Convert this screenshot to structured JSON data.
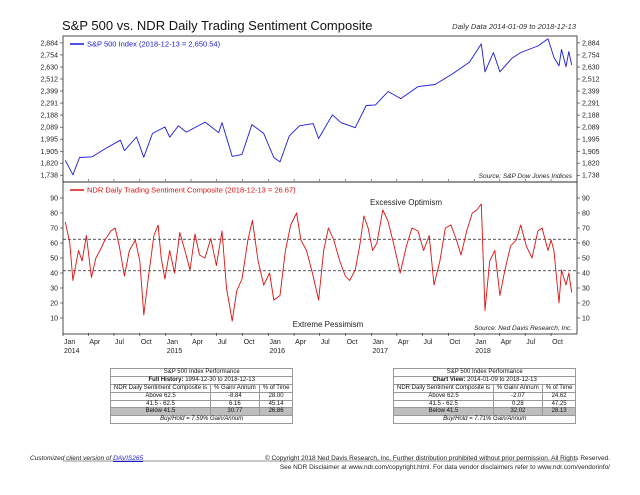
{
  "header": {
    "title": "S&P 500 vs. NDR Daily Trading Sentiment Composite",
    "date_range": "Daily Data 2014-01-09 to 2018-12-13"
  },
  "chart_data": [
    {
      "type": "line",
      "id": "spx",
      "legend": "S&P 500 Index (2018-12-13 = 2,650.54)",
      "color": "#1a1adb",
      "scale": "log",
      "ylim": [
        1700,
        2950
      ],
      "yticks": [
        "2,884",
        "2,754",
        "2,630",
        "2,512",
        "2,399",
        "2,291",
        "2,188",
        "2,089",
        "1,995",
        "1,905",
        "1,820",
        "1,738"
      ],
      "source": "Source:  S&P Dow Jones Indices",
      "series": [
        {
          "x": [
            "2014-01-09",
            "2014-02-05",
            "2014-03-01",
            "2014-04-15",
            "2014-06-01",
            "2014-07-24",
            "2014-08-07",
            "2014-09-19",
            "2014-10-15",
            "2014-11-15",
            "2014-12-29",
            "2015-01-15",
            "2015-02-15",
            "2015-03-15",
            "2015-05-21",
            "2015-07-08",
            "2015-07-20",
            "2015-08-25",
            "2015-09-29",
            "2015-11-03",
            "2015-12-15",
            "2016-01-20",
            "2016-02-11",
            "2016-03-15",
            "2016-04-20",
            "2016-06-08",
            "2016-06-27",
            "2016-08-15",
            "2016-09-15",
            "2016-11-04",
            "2016-12-13",
            "2017-01-15",
            "2017-03-01",
            "2017-04-15",
            "2017-06-15",
            "2017-08-15",
            "2017-10-15",
            "2017-12-15",
            "2018-01-26",
            "2018-02-08",
            "2018-03-10",
            "2018-04-02",
            "2018-05-15",
            "2018-06-15",
            "2018-08-15",
            "2018-09-20",
            "2018-10-11",
            "2018-10-29",
            "2018-11-07",
            "2018-11-23",
            "2018-12-03",
            "2018-12-13"
          ],
          "y": [
            1840,
            1741,
            1860,
            1865,
            1925,
            1987,
            1910,
            2012,
            1862,
            2040,
            2090,
            2010,
            2100,
            2050,
            2130,
            2045,
            2126,
            1868,
            1882,
            2110,
            2040,
            1860,
            1829,
            2020,
            2100,
            2118,
            2000,
            2190,
            2125,
            2085,
            2270,
            2275,
            2395,
            2330,
            2440,
            2460,
            2560,
            2680,
            2873,
            2581,
            2780,
            2582,
            2720,
            2780,
            2850,
            2930,
            2728,
            2641,
            2813,
            2632,
            2790,
            2650
          ]
        }
      ]
    },
    {
      "type": "line",
      "id": "ndr",
      "legend": "NDR Daily Trading Sentiment Composite (2018-12-13 = 26.67)",
      "color": "#dd1111",
      "ylim": [
        0,
        100
      ],
      "yticks": [
        "90",
        "80",
        "70",
        "60",
        "50",
        "40",
        "30",
        "20",
        "10"
      ],
      "thresholds": [
        62.5,
        41.5
      ],
      "annotation_top": "Excessive Optimism",
      "annotation_bottom": "Extreme Pessimism",
      "source": "Source:  Ned Davis Research, Inc.",
      "x_month_labels": [
        "Jan",
        "Apr",
        "Jul",
        "Oct"
      ],
      "x_year_labels": [
        "2014",
        "2015",
        "2016",
        "2017",
        "2018"
      ],
      "series": [
        {
          "x": [
            "2014-01-09",
            "2014-01-25",
            "2014-02-05",
            "2014-02-25",
            "2014-03-10",
            "2014-03-25",
            "2014-04-12",
            "2014-04-28",
            "2014-05-15",
            "2014-05-30",
            "2014-06-20",
            "2014-07-05",
            "2014-07-20",
            "2014-08-07",
            "2014-08-25",
            "2014-09-15",
            "2014-10-01",
            "2014-10-15",
            "2014-10-30",
            "2014-11-20",
            "2014-12-05",
            "2014-12-16",
            "2014-12-29",
            "2015-01-15",
            "2015-02-01",
            "2015-02-20",
            "2015-03-10",
            "2015-03-28",
            "2015-04-15",
            "2015-05-01",
            "2015-05-20",
            "2015-06-10",
            "2015-06-30",
            "2015-07-20",
            "2015-08-05",
            "2015-08-25",
            "2015-09-10",
            "2015-09-29",
            "2015-10-20",
            "2015-11-05",
            "2015-11-25",
            "2015-12-15",
            "2016-01-05",
            "2016-01-20",
            "2016-02-11",
            "2016-03-01",
            "2016-03-20",
            "2016-04-10",
            "2016-04-25",
            "2016-05-15",
            "2016-06-05",
            "2016-06-27",
            "2016-07-15",
            "2016-08-01",
            "2016-08-20",
            "2016-09-10",
            "2016-09-30",
            "2016-10-15",
            "2016-11-04",
            "2016-11-20",
            "2016-12-05",
            "2016-12-20",
            "2017-01-05",
            "2017-01-20",
            "2017-02-10",
            "2017-02-28",
            "2017-03-20",
            "2017-04-13",
            "2017-05-05",
            "2017-05-25",
            "2017-06-15",
            "2017-07-05",
            "2017-07-25",
            "2017-08-11",
            "2017-09-01",
            "2017-09-20",
            "2017-10-10",
            "2017-10-30",
            "2017-11-15",
            "2017-12-05",
            "2017-12-25",
            "2018-01-10",
            "2018-01-26",
            "2018-02-08",
            "2018-02-25",
            "2018-03-15",
            "2018-04-02",
            "2018-04-20",
            "2018-05-10",
            "2018-05-30",
            "2018-06-15",
            "2018-07-05",
            "2018-07-25",
            "2018-08-15",
            "2018-08-30",
            "2018-09-20",
            "2018-10-01",
            "2018-10-11",
            "2018-10-29",
            "2018-11-07",
            "2018-11-23",
            "2018-12-03",
            "2018-12-13"
          ],
          "y": [
            74,
            60,
            35,
            55,
            48,
            65,
            37,
            50,
            56,
            62,
            68,
            70,
            58,
            38,
            55,
            62,
            48,
            12,
            35,
            65,
            72,
            50,
            36,
            55,
            40,
            67,
            55,
            42,
            66,
            52,
            50,
            63,
            45,
            68,
            30,
            8,
            28,
            36,
            62,
            75,
            48,
            32,
            40,
            22,
            25,
            55,
            72,
            80,
            62,
            55,
            40,
            22,
            55,
            70,
            62,
            48,
            38,
            35,
            42,
            58,
            78,
            70,
            55,
            60,
            82,
            75,
            60,
            40,
            58,
            70,
            68,
            55,
            65,
            32,
            48,
            70,
            72,
            62,
            52,
            68,
            80,
            82,
            86,
            15,
            48,
            55,
            25,
            42,
            58,
            62,
            72,
            58,
            50,
            68,
            70,
            55,
            62,
            55,
            20,
            42,
            32,
            40,
            27
          ]
        }
      ]
    }
  ],
  "tables": [
    {
      "title": "S&P 500 Index Performance",
      "subtitle_label": "Full History:",
      "subtitle_value": "1994-12-30 to 2018-12-13",
      "headers": [
        "NDR Daily Sentiment Composite is",
        "% Gain/ Annum",
        "% of Time"
      ],
      "rows": [
        [
          "Above 62.5",
          "-8.84",
          "28.00"
        ],
        [
          "41.5 - 62.5",
          "6.16",
          "45.14"
        ],
        [
          "Below 41.5",
          "30.77",
          "26.86"
        ]
      ],
      "buyhold": "Buy/Hold = 7.59% Gain/Annum"
    },
    {
      "title": "S&P 500 Index Performance",
      "subtitle_label": "Chart View:",
      "subtitle_value": "2014-01-09 to 2018-12-13",
      "headers": [
        "NDR Daily Sentiment Composite is",
        "% Gain/ Annum",
        "% of Time"
      ],
      "rows": [
        [
          "Above 62.5",
          "-2.07",
          "24.62"
        ],
        [
          "41.5 - 62.5",
          "0.28",
          "47.25"
        ],
        [
          "Below 41.5",
          "32.02",
          "28.13"
        ]
      ],
      "buyhold": "Buy/Hold = 7.71% Gain/Annum"
    }
  ],
  "footer": {
    "client_prefix": "Customized client version of ",
    "client_link": "DAVIS265",
    "copyright": "© Copyright 2018 Ned Davis Research, Inc. Further distribution prohibited without prior permission. All Rights Reserved.",
    "disclaimer": "See NDR Disclaimer at www.ndr.com/copyright.html. For data vendor disclaimers refer to www.ndr.com/vendorinfo/"
  }
}
